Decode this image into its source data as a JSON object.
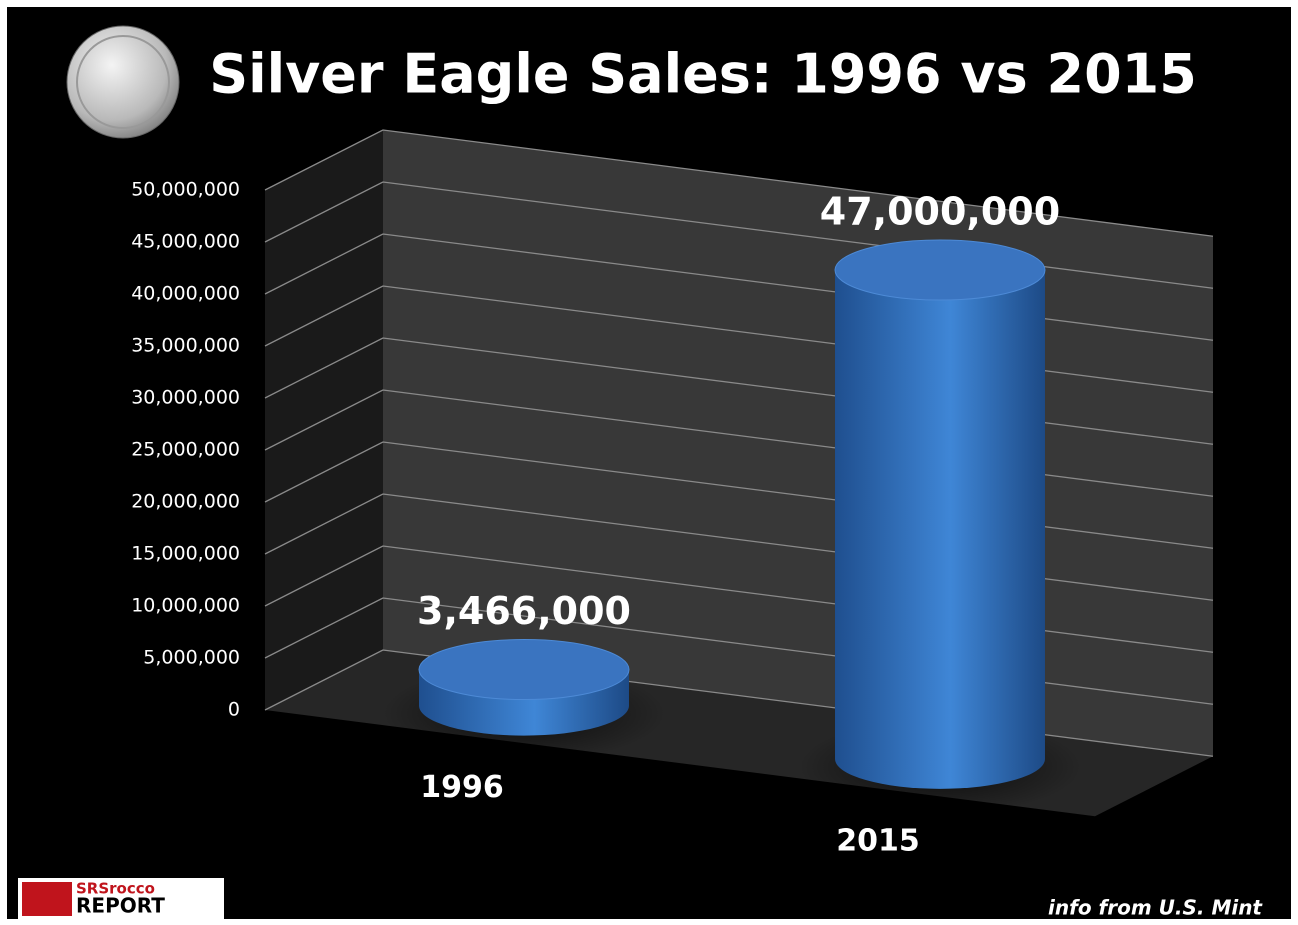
{
  "chart_data": {
    "type": "bar3d",
    "title": "Silver Eagle Sales:  1996 vs 2015",
    "categories": [
      "1996",
      "2015"
    ],
    "values": [
      3466000,
      47000000
    ],
    "value_labels": [
      "3,466,000",
      "47,000,000"
    ],
    "color": "#3a78c9",
    "ylim": [
      0,
      50000000
    ],
    "yticks": [
      0,
      {
        "value": 5000000,
        "label": "5,000,000"
      },
      {
        "value": 10000000,
        "label": "10,000,000"
      },
      {
        "value": 15000000,
        "label": "15,000,000"
      },
      {
        "value": 20000000,
        "label": "20,000,000"
      },
      {
        "value": 25000000,
        "label": "25,000,000"
      },
      {
        "value": 30000000,
        "label": "30,000,000"
      },
      {
        "value": 35000000,
        "label": "35,000,000"
      },
      {
        "value": 40000000,
        "label": "40,000,000"
      },
      {
        "value": 45000000,
        "label": "45,000,000"
      },
      {
        "value": 50000000,
        "label": "50,000,000"
      }
    ],
    "grid": true,
    "source": "info from U.S. Mint",
    "logo": [
      "SRSrocco",
      "REPORT"
    ]
  }
}
